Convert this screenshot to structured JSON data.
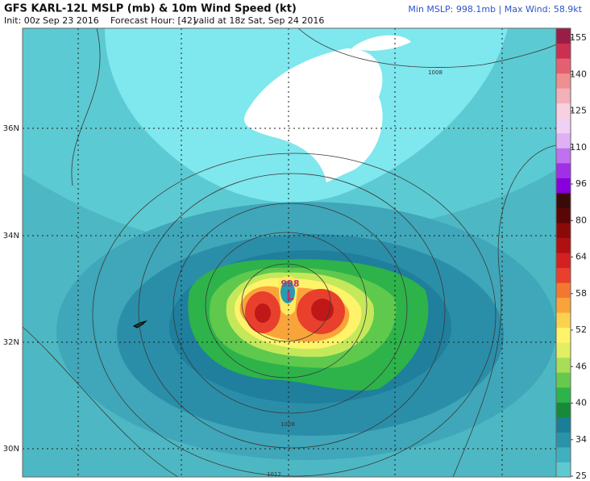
{
  "header": {
    "title": "GFS KARL-12L MSLP (mb) & 10m Wind Speed (kt)",
    "init": "Init: 00z Sep 23 2016",
    "forecast_hour": "Forecast Hour: [42]",
    "valid": "valid at 18z Sat, Sep 24 2016",
    "stats": "Min MSLP: 998.1mb | Max Wind: 58.9kt"
  },
  "latitude_labels": [
    "36N",
    "34N",
    "32N",
    "30N"
  ],
  "contour_labels": [
    "1008",
    "1008",
    "1012"
  ],
  "low": {
    "pressure": "998",
    "symbol": "L"
  },
  "legend": {
    "labels": [
      "155",
      "140",
      "125",
      "110",
      "96",
      "80",
      "64",
      "58",
      "52",
      "46",
      "40",
      "34",
      "25"
    ]
  }
}
